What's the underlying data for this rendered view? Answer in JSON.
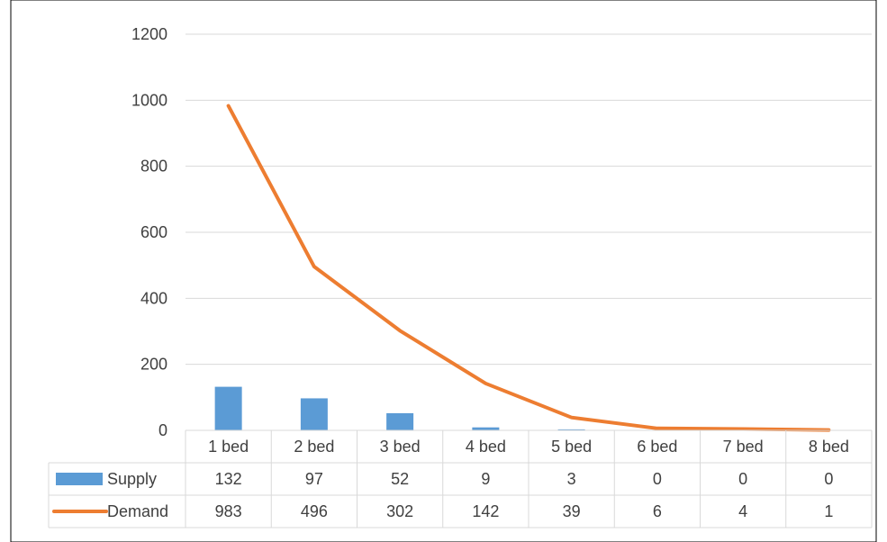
{
  "chart_data": {
    "type": "bar",
    "categories": [
      "1 bed",
      "2 bed",
      "3 bed",
      "4 bed",
      "5 bed",
      "6 bed",
      "7 bed",
      "8 bed"
    ],
    "series": [
      {
        "name": "Supply",
        "type": "bar",
        "color": "#5b9bd5",
        "values": [
          132,
          97,
          52,
          9,
          3,
          0,
          0,
          0
        ]
      },
      {
        "name": "Demand",
        "type": "line",
        "color": "#ed7d31",
        "values": [
          983,
          496,
          302,
          142,
          39,
          6,
          4,
          1
        ]
      }
    ],
    "ylim": [
      0,
      1200
    ],
    "yticks": [
      0,
      200,
      400,
      600,
      800,
      1000,
      1200
    ],
    "grid": true,
    "legend": "data-table",
    "data_table": true
  }
}
